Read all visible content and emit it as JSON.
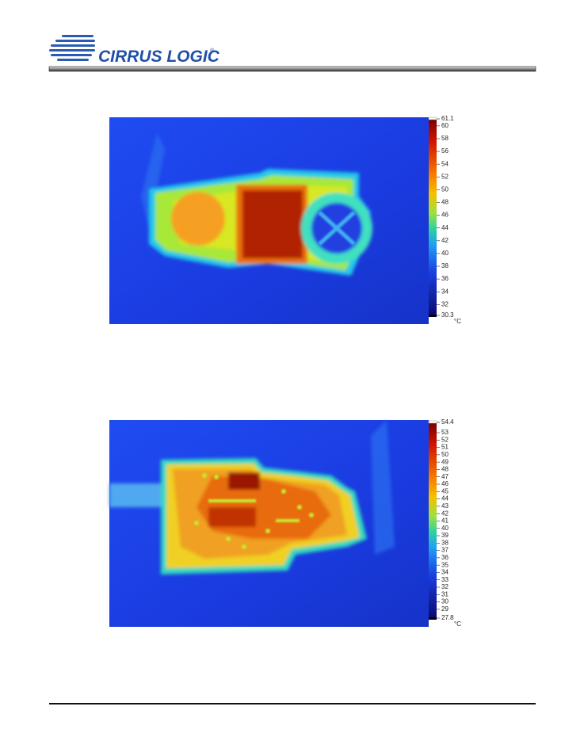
{
  "header": {
    "logo": "CIRRUS LOGIC",
    "logo_mark": "®"
  },
  "figures": [
    {
      "scale": {
        "max": 61.1,
        "min": 30.3,
        "ticks": [
          60,
          58,
          56,
          54,
          52,
          50,
          48,
          46,
          44,
          42,
          40,
          38,
          36,
          34,
          32
        ],
        "unit": "°C"
      }
    },
    {
      "scale": {
        "max": 54.4,
        "min": 27.8,
        "ticks": [
          53,
          52,
          51,
          50,
          49,
          48,
          47,
          46,
          45,
          44,
          43,
          42,
          41,
          40,
          39,
          38,
          37,
          36,
          35,
          34,
          33,
          32,
          31,
          30,
          29
        ],
        "unit": "°C"
      }
    }
  ]
}
